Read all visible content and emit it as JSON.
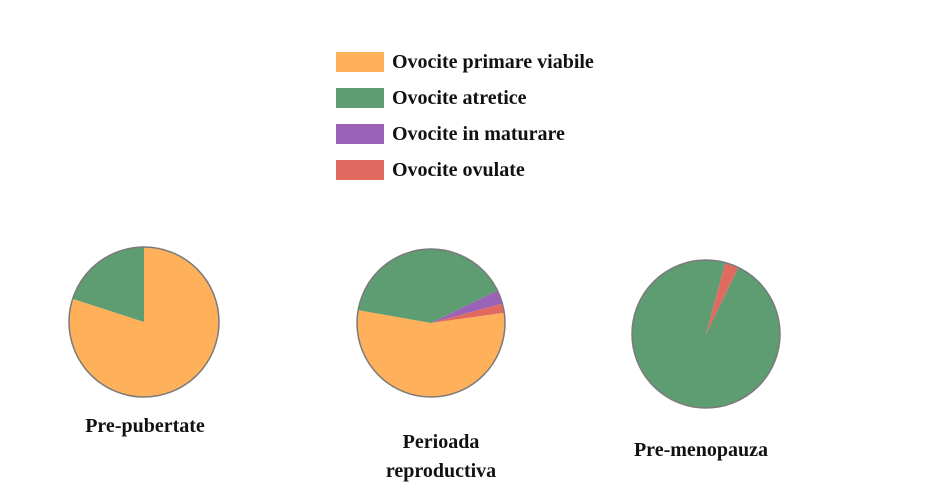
{
  "chart_data": {
    "type": "pie",
    "legend": [
      {
        "label": "Ovocite primare viabile",
        "color": "#FFB05A"
      },
      {
        "label": "Ovocite atretice",
        "color": "#5E9C72"
      },
      {
        "label": "Ovocite in maturare",
        "color": "#9B63B8"
      },
      {
        "label": "Ovocite ovulate",
        "color": "#E06A60"
      }
    ],
    "legend_position": "top-center",
    "pies": [
      {
        "label": "Pre-pubertate",
        "values": [
          80,
          20,
          0,
          0
        ]
      },
      {
        "label": "Perioada reproductiva",
        "values": [
          55,
          40,
          3,
          2
        ]
      },
      {
        "label": "Pre-menopauza",
        "values": [
          0,
          97,
          0,
          3
        ]
      }
    ]
  }
}
